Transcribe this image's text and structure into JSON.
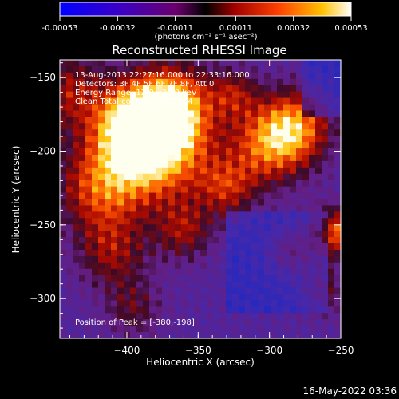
{
  "colorbar": {
    "tick_labels": [
      "-0.00053",
      "-0.00032",
      "-0.00011",
      "0.00011",
      "0.00032",
      "0.00053"
    ],
    "tick_values": [
      -0.00053,
      -0.00032,
      -0.00011,
      0.00011,
      0.00032,
      0.00053
    ],
    "range": [
      -0.00053,
      0.00053
    ],
    "units_label": "(photons cm⁻² s⁻¹ asec⁻²)"
  },
  "chart_data": {
    "type": "heatmap",
    "title": "Reconstructed RHESSI Image",
    "xlabel": "Heliocentric X (arcsec)",
    "ylabel": "Heliocentric Y (arcsec)",
    "xlim": [
      -447,
      -250
    ],
    "ylim": [
      -327,
      -138
    ],
    "x_ticks": [
      -400,
      -350,
      -300,
      -250
    ],
    "y_ticks": [
      -150,
      -200,
      -250,
      -300
    ],
    "x_tick_labels": [
      "−400",
      "−350",
      "−300",
      "−250"
    ],
    "y_tick_labels": [
      "−150",
      "−200",
      "−250",
      "−300"
    ],
    "colormap": "blue-purple-red-yellow-white",
    "peak_position": [
      -380,
      -198
    ],
    "annotations": [
      "13-Aug-2013 22:27:16.000 to 22:33:16.000",
      "Detectors: 3F 4F 5F 6F 7F 8F, Att 0",
      "Energy Range: 12.0 - 25.0 keV",
      "Clean     Total counts: 1.45E+04",
      "Position of Peak = [-380,-198]"
    ]
  },
  "footer": {
    "date": "16-May-2022 03:36"
  },
  "colors": {
    "background": "#000000",
    "text": "#ffffff"
  }
}
